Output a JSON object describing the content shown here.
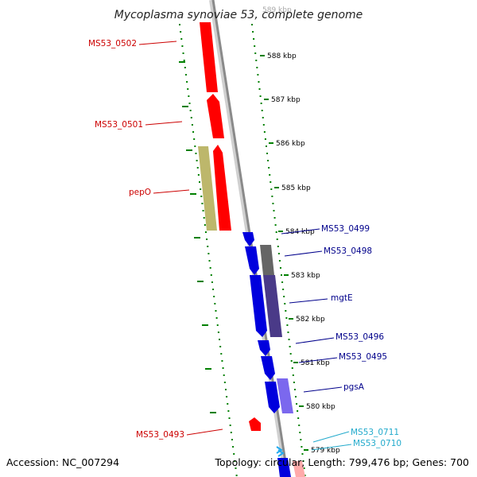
{
  "title": "Mycoplasma synoviae 53, complete genome",
  "footer": {
    "accession": "Accession: NC_007294",
    "topology": "Topology: circular; Length: 799,476 bp; Genes: 700"
  },
  "ticks": [
    "588 kbp",
    "587 kbp",
    "586 kbp",
    "585 kbp",
    "584 kbp",
    "583 kbp",
    "582 kbp",
    "581 kbp",
    "580 kbp",
    "579 kbp"
  ],
  "top_tick_partial": "589 kbp",
  "colors": {
    "forward_gene": "#ff0000",
    "reverse_gene": "#0000dd",
    "backbone": "#8a8a8a",
    "dots": "#008000",
    "label_red": "#cc0000",
    "label_blue": "#00008b",
    "label_cyan": "#22aacc",
    "khaki": "#bdb76b",
    "slate_dark": "#555577",
    "slate": "#4a3a88",
    "lavender": "#7b68ee"
  },
  "gene_labels": [
    {
      "name": "MS53_0502",
      "color": "red"
    },
    {
      "name": "MS53_0501",
      "color": "red"
    },
    {
      "name": "pepO",
      "color": "red"
    },
    {
      "name": "MS53_0499",
      "color": "blue"
    },
    {
      "name": "MS53_0498",
      "color": "blue"
    },
    {
      "name": "mgtE",
      "color": "blue"
    },
    {
      "name": "MS53_0496",
      "color": "blue"
    },
    {
      "name": "MS53_0495",
      "color": "blue"
    },
    {
      "name": "pgsA",
      "color": "blue"
    },
    {
      "name": "MS53_0711",
      "color": "cyan"
    },
    {
      "name": "MS53_0710",
      "color": "cyan"
    },
    {
      "name": "MS53_0493",
      "color": "red"
    }
  ]
}
